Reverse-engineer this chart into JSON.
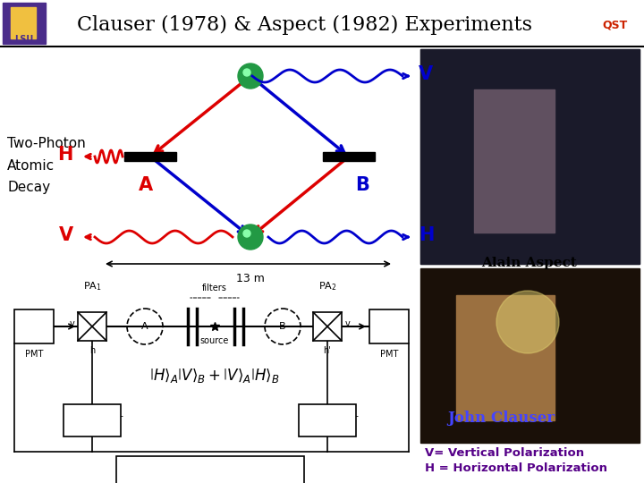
{
  "title": "Clauser (1978) & Aspect (1982) Experiments",
  "title_fontsize": 16,
  "bg_color": "#ffffff",
  "header_bg": "#ffffff",
  "header_line_color": "#000000",
  "left_label": "Two-Photon\nAtomic\nDecay",
  "alain_aspect_label": "Alain Aspect",
  "john_clauser_label": "John Clauser",
  "v_pol_label": "V= Vertical Polarization",
  "h_pol_label": "H = Horizontal Polarization",
  "distance_label": "13 m",
  "red_color": "#dd0000",
  "blue_color": "#0000cc",
  "green_ball_color": "#229944",
  "dark_color": "#111111",
  "footer_note_color": "#550088",
  "photo1_color": "#777777",
  "photo2_color": "#9b7040"
}
